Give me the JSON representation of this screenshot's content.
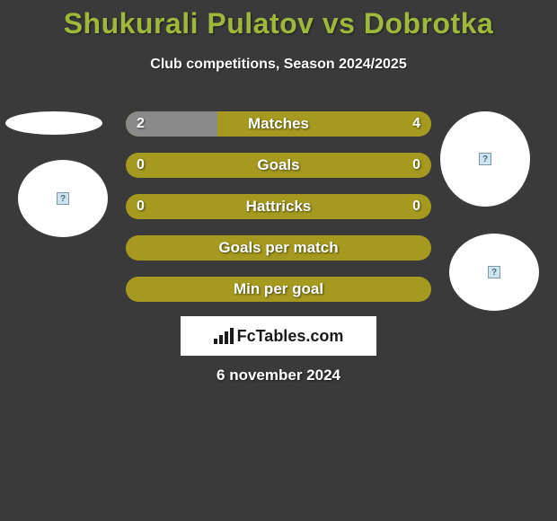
{
  "title": "Shukurali Pulatov vs Dobrotka",
  "subtitle": "Club competitions, Season 2024/2025",
  "colors": {
    "background": "#3a3a3a",
    "accent": "#9eb83b",
    "bar_base": "#a59a1f",
    "bar_left": "#8a8a8a",
    "bar_right": "#a59a1f",
    "white": "#ffffff"
  },
  "bars": [
    {
      "label": "Matches",
      "left_value": "2",
      "right_value": "4",
      "left_pct": 30,
      "right_pct": 70,
      "left_color": "#8a8a8a",
      "right_color": "#a59a1f"
    },
    {
      "label": "Goals",
      "left_value": "0",
      "right_value": "0",
      "left_pct": 0,
      "right_pct": 0,
      "left_color": "#a59a1f",
      "right_color": "#a59a1f"
    },
    {
      "label": "Hattricks",
      "left_value": "0",
      "right_value": "0",
      "left_pct": 0,
      "right_pct": 0,
      "left_color": "#a59a1f",
      "right_color": "#a59a1f"
    },
    {
      "label": "Goals per match",
      "left_value": "",
      "right_value": "",
      "left_pct": 0,
      "right_pct": 0,
      "left_color": "#a59a1f",
      "right_color": "#a59a1f"
    },
    {
      "label": "Min per goal",
      "left_value": "",
      "right_value": "",
      "left_pct": 0,
      "right_pct": 0,
      "left_color": "#a59a1f",
      "right_color": "#a59a1f"
    }
  ],
  "logo_text": "FcTables.com",
  "date": "6 november 2024"
}
